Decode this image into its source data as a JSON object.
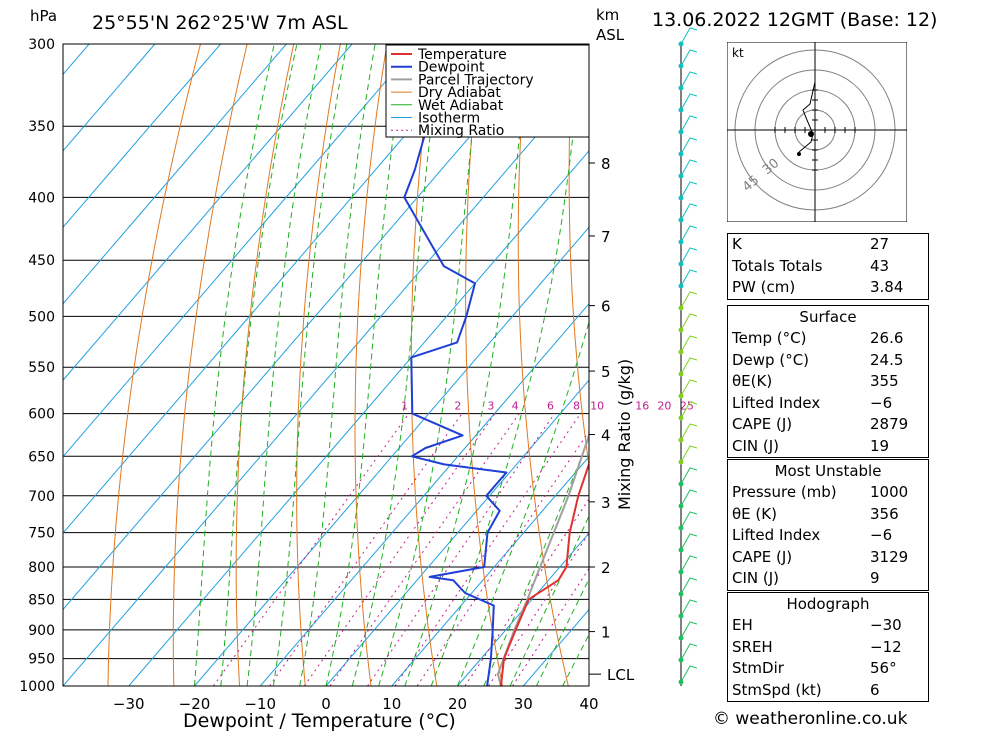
{
  "header": {
    "location": "25°55'N  262°25'W  7m  ASL",
    "datetime": "13.06.2022  12GMT  (Base: 12)",
    "hpa_label": "hPa",
    "km_label": "km",
    "asl_label": "ASL"
  },
  "axes": {
    "xlabel": "Dewpoint / Temperature (°C)",
    "right_label": "Mixing Ratio (g/kg)",
    "lcl_label": "LCL"
  },
  "legend": [
    "Temperature",
    "Dewpoint",
    "Parcel Trajectory",
    "Dry Adiabat",
    "Wet Adiabat",
    "Isotherm",
    "Mixing Ratio"
  ],
  "colors": {
    "temperature": "#e03030",
    "dewpoint": "#1f3fd6",
    "parcel": "#a0a0a0",
    "dry_adiabat": "#e07820",
    "wet_adiabat": "#20b020",
    "isotherm": "#20a0e0",
    "mixing_ratio": "#c02090",
    "wind": "#10c0c0"
  },
  "chart_data": {
    "type": "skew-t",
    "pressure_levels": [
      300,
      350,
      400,
      450,
      500,
      550,
      600,
      650,
      700,
      750,
      800,
      850,
      900,
      950,
      1000
    ],
    "temp_ticks": [
      -30,
      -20,
      -10,
      0,
      10,
      20,
      30,
      40
    ],
    "xlim": [
      -40,
      40
    ],
    "ylim": [
      1000,
      300
    ],
    "km_ticks": [
      {
        "km": "1",
        "p": 903
      },
      {
        "km": "2",
        "p": 800
      },
      {
        "km": "3",
        "p": 708
      },
      {
        "km": "4",
        "p": 624
      },
      {
        "km": "5",
        "p": 554
      },
      {
        "km": "6",
        "p": 490
      },
      {
        "km": "7",
        "p": 430
      },
      {
        "km": "8",
        "p": 375
      }
    ],
    "lcl_pressure": 978,
    "mixing_ratio_labels": [
      "1",
      "2",
      "3",
      "4",
      "6",
      "8",
      "10",
      "16",
      "20",
      "25"
    ],
    "temperature": [
      {
        "p": 1000,
        "t": 26.6
      },
      {
        "p": 950,
        "t": 23.5
      },
      {
        "p": 900,
        "t": 21.5
      },
      {
        "p": 850,
        "t": 19.5
      },
      {
        "p": 820,
        "t": 21.5
      },
      {
        "p": 800,
        "t": 21.0
      },
      {
        "p": 750,
        "t": 17.0
      },
      {
        "p": 700,
        "t": 13.5
      },
      {
        "p": 660,
        "t": 11.0
      },
      {
        "p": 650,
        "t": 11.5
      },
      {
        "p": 620,
        "t": 9.0
      },
      {
        "p": 600,
        "t": 8.0
      },
      {
        "p": 550,
        "t": 4.5
      },
      {
        "p": 500,
        "t": -1.0
      },
      {
        "p": 475,
        "t": -4.0
      },
      {
        "p": 460,
        "t": -3.5
      },
      {
        "p": 450,
        "t": -4.0
      },
      {
        "p": 400,
        "t": -9.5
      },
      {
        "p": 350,
        "t": -17.5
      },
      {
        "p": 300,
        "t": -27.0
      }
    ],
    "dewpoint": [
      {
        "p": 1000,
        "t": 24.5
      },
      {
        "p": 950,
        "t": 21.5
      },
      {
        "p": 900,
        "t": 18.0
      },
      {
        "p": 860,
        "t": 15.0
      },
      {
        "p": 840,
        "t": 9.0
      },
      {
        "p": 820,
        "t": 5.5
      },
      {
        "p": 815,
        "t": 1.5
      },
      {
        "p": 800,
        "t": 8.5
      },
      {
        "p": 750,
        "t": 4.5
      },
      {
        "p": 720,
        "t": 3.5
      },
      {
        "p": 700,
        "t": -0.5
      },
      {
        "p": 670,
        "t": -0.5
      },
      {
        "p": 660,
        "t": -11.0
      },
      {
        "p": 650,
        "t": -17.0
      },
      {
        "p": 640,
        "t": -16.0
      },
      {
        "p": 625,
        "t": -12.0
      },
      {
        "p": 600,
        "t": -22.5
      },
      {
        "p": 540,
        "t": -30.0
      },
      {
        "p": 525,
        "t": -25.0
      },
      {
        "p": 500,
        "t": -27.0
      },
      {
        "p": 470,
        "t": -30.0
      },
      {
        "p": 455,
        "t": -37.0
      },
      {
        "p": 400,
        "t": -52.0
      },
      {
        "p": 380,
        "t": -54.0
      },
      {
        "p": 300,
        "t": -65.0
      }
    ],
    "parcel": [
      {
        "p": 1000,
        "t": 26.6
      },
      {
        "p": 978,
        "t": 24.6
      },
      {
        "p": 900,
        "t": 21.3
      },
      {
        "p": 850,
        "t": 19.3
      },
      {
        "p": 800,
        "t": 17.0
      },
      {
        "p": 700,
        "t": 12.0
      },
      {
        "p": 600,
        "t": 5.5
      },
      {
        "p": 500,
        "t": -3.0
      },
      {
        "p": 400,
        "t": -15.0
      },
      {
        "p": 370,
        "t": -19.5
      }
    ]
  },
  "indices": {
    "top": [
      {
        "label": "K",
        "value": "27"
      },
      {
        "label": "Totals Totals",
        "value": "43"
      },
      {
        "label": "PW (cm)",
        "value": "3.84"
      }
    ],
    "surface": {
      "title": "Surface",
      "rows": [
        {
          "label": "Temp (°C)",
          "value": "26.6"
        },
        {
          "label": "Dewp (°C)",
          "value": "24.5"
        },
        {
          "label": "θE(K)",
          "value": "355"
        },
        {
          "label": "Lifted Index",
          "value": "−6"
        },
        {
          "label": "CAPE (J)",
          "value": "2879"
        },
        {
          "label": "CIN (J)",
          "value": "19"
        }
      ]
    },
    "most_unstable": {
      "title": "Most Unstable",
      "rows": [
        {
          "label": "Pressure (mb)",
          "value": "1000"
        },
        {
          "label": "θE (K)",
          "value": "356"
        },
        {
          "label": "Lifted Index",
          "value": "−6"
        },
        {
          "label": "CAPE (J)",
          "value": "3129"
        },
        {
          "label": "CIN (J)",
          "value": "9"
        }
      ]
    },
    "hodograph": {
      "title": "Hodograph",
      "rows": [
        {
          "label": "EH",
          "value": "−30"
        },
        {
          "label": "SREH",
          "value": "−12"
        },
        {
          "label": "StmDir",
          "value": "56°"
        },
        {
          "label": "StmSpd (kt)",
          "value": "6"
        }
      ]
    }
  },
  "hodo": {
    "unit": "kt",
    "ring_labels": [
      "30",
      "45"
    ]
  },
  "footer": "© weatheronline.co.uk"
}
